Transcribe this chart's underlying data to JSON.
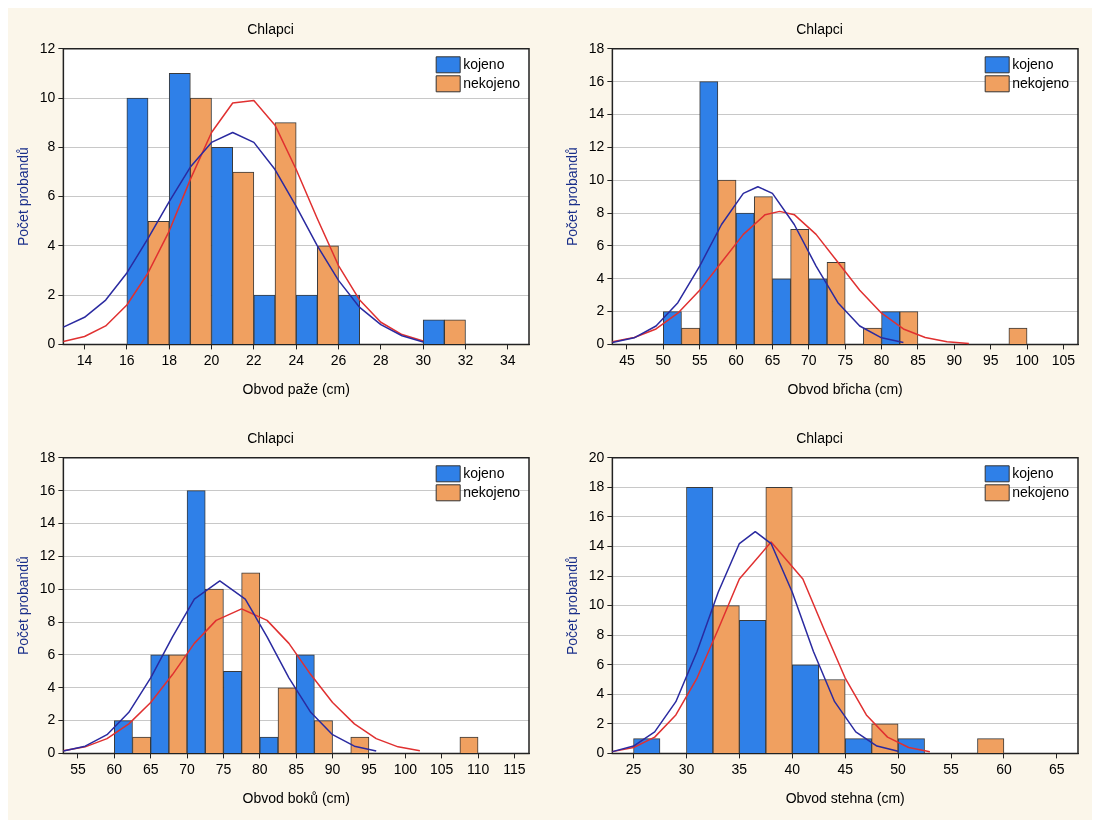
{
  "chart_data": [
    {
      "type": "bar",
      "title": "Chlapci",
      "xlabel": "Obvod paže (cm)",
      "ylabel": "Počet probandů",
      "x": [
        17,
        19,
        21,
        23,
        25,
        27,
        29,
        31
      ],
      "series": [
        {
          "name": "kojeno",
          "color": "#2f80e8",
          "values": [
            10,
            11,
            8,
            2,
            2,
            2,
            0,
            1
          ]
        },
        {
          "name": "nekojeno",
          "color": "#f0a060",
          "values": [
            5,
            10,
            7,
            9,
            4,
            0,
            0,
            1
          ]
        },
        {
          "type": "line",
          "color": "#2a2aa0",
          "x": [
            13,
            14,
            15,
            16,
            17,
            18,
            19,
            20,
            21,
            22,
            23,
            24,
            25,
            26,
            27,
            28,
            29,
            30
          ],
          "values": [
            0.7,
            1.1,
            1.8,
            2.9,
            4.3,
            5.8,
            7.2,
            8.2,
            8.6,
            8.2,
            7.1,
            5.6,
            4.0,
            2.6,
            1.5,
            0.8,
            0.35,
            0.1
          ]
        },
        {
          "type": "line",
          "color": "#e03030",
          "x": [
            13,
            14,
            15,
            16,
            17,
            18,
            19,
            20,
            21,
            22,
            23,
            24,
            25,
            26,
            27,
            28,
            29,
            30
          ],
          "values": [
            0.12,
            0.32,
            0.75,
            1.6,
            2.9,
            4.6,
            6.7,
            8.6,
            9.8,
            9.9,
            8.9,
            7.1,
            5.1,
            3.2,
            1.8,
            0.9,
            0.4,
            0.14
          ]
        }
      ],
      "xlim": [
        13,
        35
      ],
      "xticks": [
        14,
        16,
        18,
        20,
        22,
        24,
        26,
        28,
        30,
        32,
        34
      ],
      "ylim": [
        0,
        12
      ],
      "yticks": [
        0,
        2,
        4,
        6,
        8,
        10,
        12
      ],
      "grid": "y",
      "legend": "top right"
    },
    {
      "type": "bar",
      "title": "Chlapci",
      "xlabel": "Obvod břicha (cm)",
      "ylabel": "Počet probandů",
      "x": [
        52.5,
        57.5,
        62.5,
        67.5,
        72.5,
        77.5,
        82.5,
        87.5,
        92.5,
        97.5
      ],
      "series": [
        {
          "name": "kojeno",
          "color": "#2f80e8",
          "values": [
            2,
            16,
            8,
            4,
            4,
            0,
            2,
            0,
            0,
            0
          ]
        },
        {
          "name": "nekojeno",
          "color": "#f0a060",
          "values": [
            1,
            10,
            9,
            7,
            5,
            1,
            2,
            0,
            0,
            1
          ]
        },
        {
          "type": "line",
          "color": "#2a2aa0",
          "x": [
            43,
            46,
            49,
            52,
            55,
            58,
            61,
            63,
            65,
            68,
            71,
            74,
            77,
            80,
            83
          ],
          "values": [
            0.12,
            0.4,
            1.12,
            2.54,
            4.77,
            7.3,
            9.2,
            9.6,
            9.2,
            7.3,
            4.77,
            2.54,
            1.12,
            0.4,
            0.12
          ]
        },
        {
          "type": "line",
          "color": "#e03030",
          "x": [
            43,
            46,
            49,
            52,
            55,
            58,
            61,
            64,
            66,
            68,
            71,
            74,
            77,
            80,
            83,
            86,
            89,
            92
          ],
          "values": [
            0.16,
            0.42,
            0.94,
            1.9,
            3.3,
            5.0,
            6.7,
            7.9,
            8.1,
            7.9,
            6.7,
            5.0,
            3.3,
            1.9,
            0.94,
            0.42,
            0.16,
            0.06
          ]
        }
      ],
      "xlim": [
        43,
        107
      ],
      "xticks": [
        45,
        50,
        55,
        60,
        65,
        70,
        75,
        80,
        85,
        90,
        95,
        100,
        105
      ],
      "ylim": [
        0,
        18
      ],
      "yticks": [
        0,
        2,
        4,
        6,
        8,
        10,
        12,
        14,
        16,
        18
      ],
      "grid": "y",
      "legend": "top right"
    },
    {
      "type": "bar",
      "title": "Chlapci",
      "xlabel": "Obvod boků (cm)",
      "ylabel": "Počet probandů",
      "x": [
        62.5,
        67.5,
        72.5,
        77.5,
        82.5,
        87.5,
        92.5,
        97.5,
        102.5,
        107.5
      ],
      "series": [
        {
          "name": "kojeno",
          "color": "#2f80e8",
          "values": [
            2,
            6,
            16,
            5,
            1,
            6,
            0,
            0,
            0,
            0
          ]
        },
        {
          "name": "nekojeno",
          "color": "#f0a060",
          "values": [
            1,
            6,
            10,
            11,
            4,
            2,
            1,
            0,
            0,
            1
          ]
        },
        {
          "type": "line",
          "color": "#2a2aa0",
          "x": [
            53,
            56,
            59,
            62,
            65,
            68,
            71,
            74.5,
            78,
            81,
            84,
            87,
            90,
            93,
            96
          ],
          "values": [
            0.15,
            0.44,
            1.14,
            2.5,
            4.6,
            7.1,
            9.4,
            10.5,
            9.4,
            7.1,
            4.6,
            2.5,
            1.14,
            0.44,
            0.15
          ]
        },
        {
          "type": "line",
          "color": "#e03030",
          "x": [
            53,
            56,
            59,
            62,
            65,
            68,
            71,
            74,
            77.5,
            81,
            84,
            87,
            90,
            93,
            96,
            99,
            102
          ],
          "values": [
            0.16,
            0.4,
            0.9,
            1.8,
            3.1,
            4.8,
            6.7,
            8.1,
            8.8,
            8.1,
            6.7,
            4.8,
            3.1,
            1.8,
            0.9,
            0.4,
            0.16
          ]
        }
      ],
      "xlim": [
        53,
        117
      ],
      "xticks": [
        55,
        60,
        65,
        70,
        75,
        80,
        85,
        90,
        95,
        100,
        105,
        110,
        115
      ],
      "ylim": [
        0,
        18
      ],
      "yticks": [
        0,
        2,
        4,
        6,
        8,
        10,
        12,
        14,
        16,
        18
      ],
      "grid": "y",
      "legend": "top right"
    },
    {
      "type": "bar",
      "title": "Chlapci",
      "xlabel": "Obvod stehna (cm)",
      "ylabel": "Počet probandů",
      "x": [
        27.5,
        32.5,
        37.5,
        42.5,
        47.5,
        52.5,
        57.5
      ],
      "series": [
        {
          "name": "kojeno",
          "color": "#2f80e8",
          "values": [
            1,
            18,
            9,
            6,
            1,
            1,
            0
          ]
        },
        {
          "name": "nekojeno",
          "color": "#f0a060",
          "values": [
            0,
            10,
            18,
            5,
            2,
            0,
            1
          ]
        },
        {
          "type": "line",
          "color": "#2a2aa0",
          "x": [
            23,
            25,
            27,
            29,
            31,
            33,
            35,
            36.5,
            38,
            40,
            42,
            44,
            46,
            48,
            50
          ],
          "values": [
            0.12,
            0.5,
            1.46,
            3.5,
            6.9,
            10.9,
            14.2,
            15,
            14.2,
            10.9,
            6.9,
            3.5,
            1.46,
            0.5,
            0.14
          ]
        },
        {
          "type": "line",
          "color": "#e03030",
          "x": [
            23,
            25,
            27,
            29,
            31,
            33,
            35,
            38,
            41,
            43,
            45,
            47,
            49,
            51,
            53
          ],
          "values": [
            0.12,
            0.4,
            1.1,
            2.6,
            5.1,
            8.4,
            11.8,
            14.3,
            11.8,
            8.4,
            5.1,
            2.6,
            1.1,
            0.4,
            0.11
          ]
        }
      ],
      "xlim": [
        23,
        67
      ],
      "xticks": [
        25,
        30,
        35,
        40,
        45,
        50,
        55,
        60,
        65
      ],
      "ylim": [
        0,
        20
      ],
      "yticks": [
        0,
        2,
        4,
        6,
        8,
        10,
        12,
        14,
        16,
        18,
        20
      ],
      "grid": "y",
      "legend": "top right"
    }
  ]
}
